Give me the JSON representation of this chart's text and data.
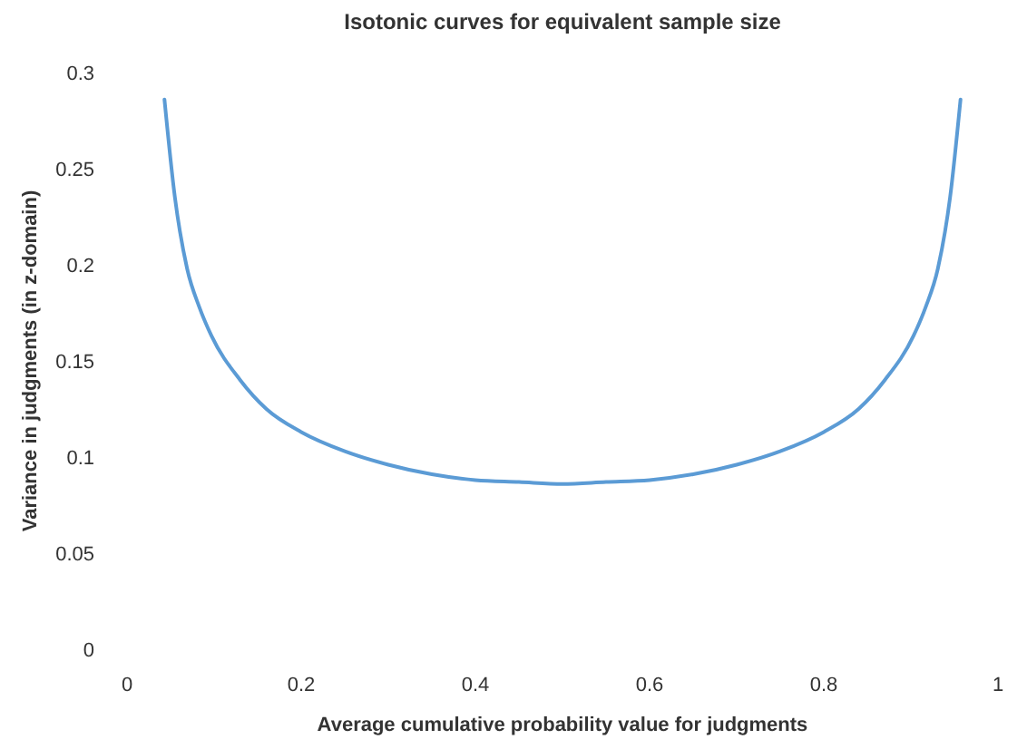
{
  "chart_data": {
    "type": "line",
    "title": "Isotonic curves for equivalent sample size",
    "xlabel": "Average cumulative probability value for judgments",
    "ylabel": "Variance in judgments (in z-domain)",
    "xlim": [
      0,
      1
    ],
    "xticks": [
      0,
      0.2,
      0.4,
      0.6,
      0.8,
      1
    ],
    "ylim": [
      0,
      0.3
    ],
    "yticks": [
      0,
      0.05,
      0.1,
      0.15,
      0.2,
      0.25,
      0.3
    ],
    "grid": false,
    "series": [
      {
        "color": "#5b9bd5",
        "x": [
          0.043,
          0.055,
          0.069,
          0.083,
          0.097,
          0.13,
          0.16,
          0.2,
          0.25,
          0.3,
          0.35,
          0.4,
          0.45,
          0.5,
          0.55,
          0.6,
          0.65,
          0.7,
          0.75,
          0.8,
          0.84,
          0.87,
          0.903,
          0.917,
          0.931,
          0.945,
          0.957
        ],
        "values": [
          0.286,
          0.235,
          0.198,
          0.178,
          0.163,
          0.14,
          0.125,
          0.113,
          0.103,
          0.096,
          0.091,
          0.088,
          0.087,
          0.086,
          0.087,
          0.088,
          0.091,
          0.096,
          0.103,
          0.113,
          0.125,
          0.14,
          0.163,
          0.178,
          0.198,
          0.235,
          0.286
        ]
      }
    ]
  }
}
